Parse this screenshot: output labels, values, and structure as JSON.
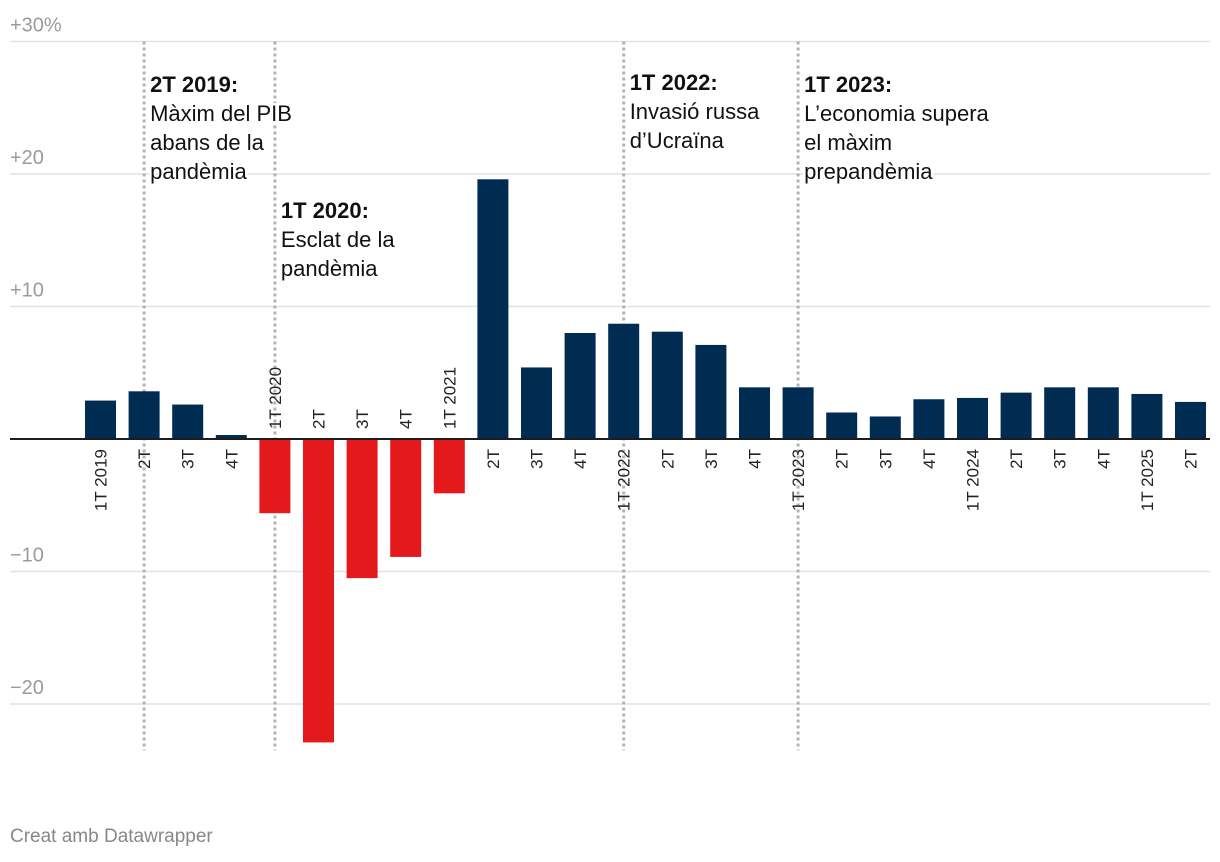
{
  "chart_data": {
    "type": "bar",
    "unit": "%",
    "ylim": [
      -23.5,
      30
    ],
    "yticks": [
      {
        "value": 30,
        "label": "+30%"
      },
      {
        "value": 20,
        "label": "+20"
      },
      {
        "value": 10,
        "label": "+10"
      },
      {
        "value": -10,
        "label": "−10"
      },
      {
        "value": -20,
        "label": "−20"
      }
    ],
    "categories": [
      "1T 2019",
      "2T",
      "3T",
      "4T",
      "1T 2020",
      "2T",
      "3T",
      "4T",
      "1T 2021",
      "2T",
      "3T",
      "4T",
      "1T 2022",
      "2T",
      "3T",
      "4T",
      "1T 2023",
      "2T",
      "3T",
      "4T",
      "1T 2024",
      "2T",
      "3T",
      "4T",
      "1T 2025",
      "2T"
    ],
    "values": [
      2.9,
      3.6,
      2.6,
      0.3,
      -5.6,
      -22.9,
      -10.5,
      -8.9,
      -4.1,
      19.6,
      5.4,
      8.0,
      8.7,
      8.1,
      7.1,
      3.9,
      3.9,
      2.0,
      1.7,
      3.0,
      3.1,
      3.5,
      3.9,
      3.9,
      3.4,
      2.8
    ],
    "colors": {
      "positive": "#002c52",
      "negative": "#e3191c"
    },
    "annotations": [
      {
        "category_index": 1,
        "title": "2T 2019:",
        "lines": [
          "Màxim del PIB",
          "abans de la",
          "pandèmia"
        ]
      },
      {
        "category_index": 4,
        "title": "1T 2020:",
        "lines": [
          "Esclat de la",
          "pandèmia"
        ]
      },
      {
        "category_index": 12,
        "title": "1T 2022:",
        "lines": [
          "Invasió russa",
          "d’Ucraïna"
        ]
      },
      {
        "category_index": 16,
        "title": "1T 2023:",
        "lines": [
          "L’economia supera",
          "el màxim",
          "prepandèmia"
        ]
      }
    ]
  },
  "footer": "Creat amb Datawrapper"
}
